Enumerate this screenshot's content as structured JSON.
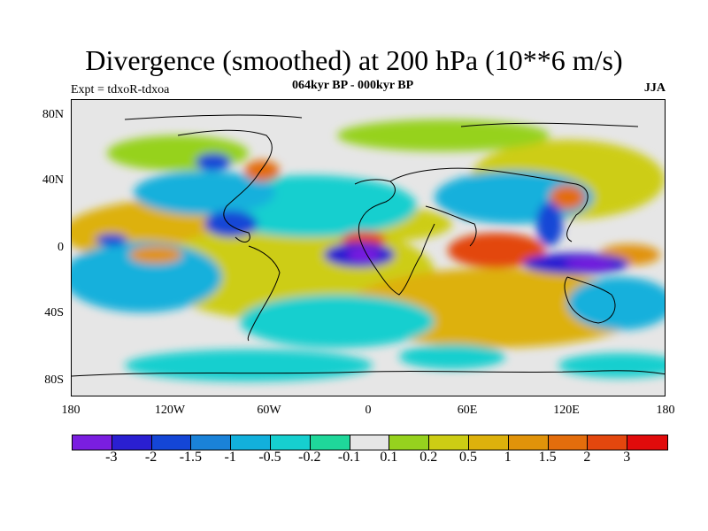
{
  "title": "Divergence (smoothed) at 200 hPa (10**6 m/s)",
  "subtitle": "064kyr BP - 000kyr BP",
  "left_label": "Expt = tdxoR-tdxoa",
  "right_label": "JJA",
  "lat_ticks": [
    "80N",
    "40N",
    "0",
    "40S",
    "80S"
  ],
  "lon_ticks": [
    "180",
    "120W",
    "60W",
    "0",
    "60E",
    "120E",
    "180"
  ],
  "colorbar": {
    "colors": [
      "#7a1ee0",
      "#2a1fd1",
      "#1446d6",
      "#1a82d8",
      "#12b0dc",
      "#16cfcf",
      "#1fd79a",
      "#e6e6e6",
      "#96d21e",
      "#cdcd14",
      "#ddb10c",
      "#e1930a",
      "#e36d0c",
      "#e3470e",
      "#e10b0b"
    ],
    "labels": [
      "-3",
      "-2",
      "-1.5",
      "-1",
      "-0.5",
      "-0.2",
      "-0.1",
      "0.1",
      "0.2",
      "0.5",
      "1",
      "1.5",
      "2",
      "3"
    ]
  }
}
